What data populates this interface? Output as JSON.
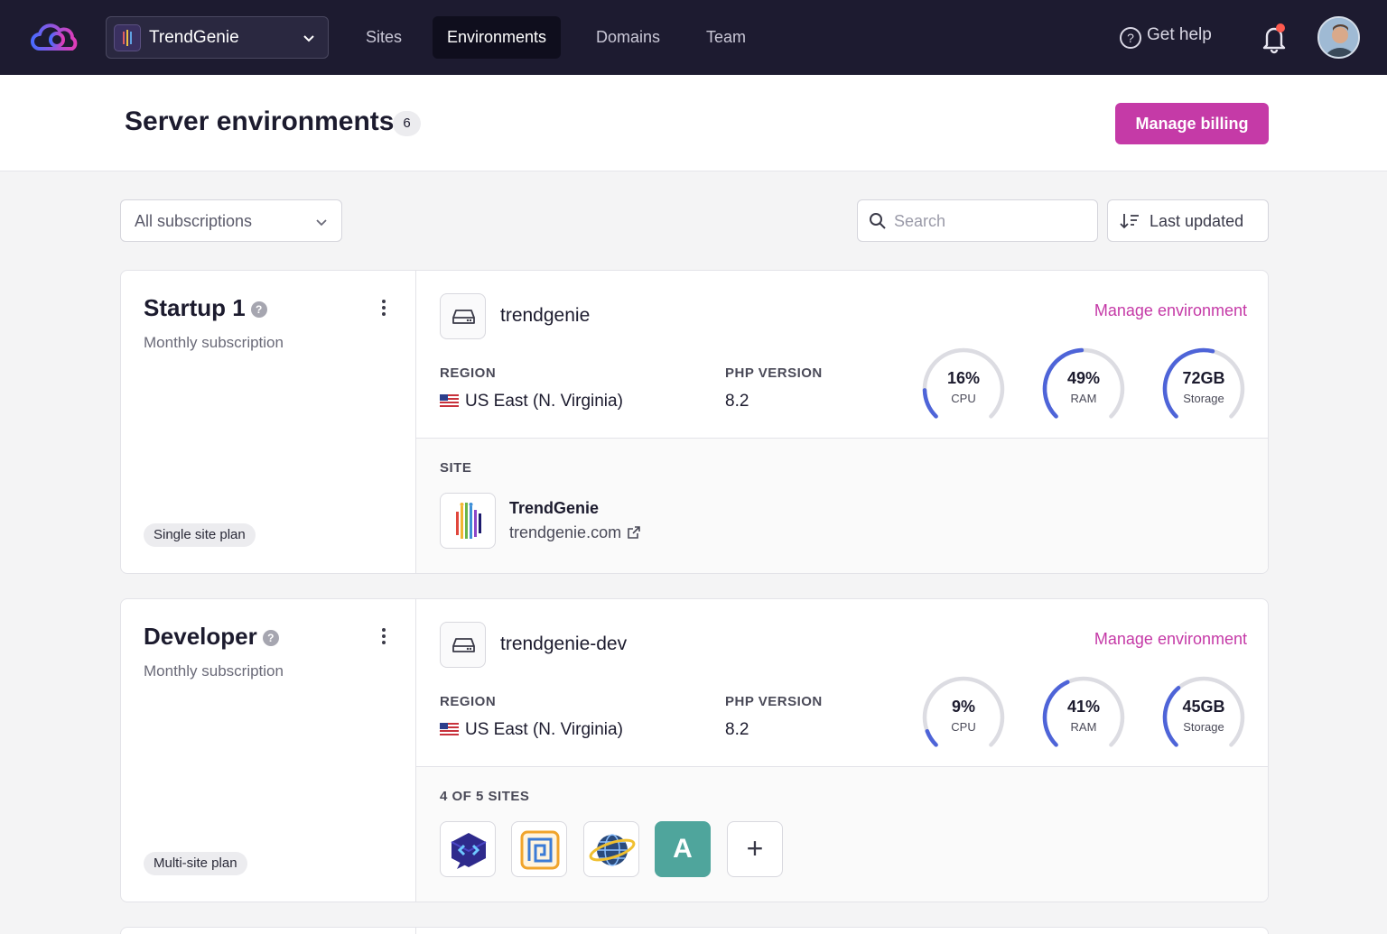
{
  "nav": {
    "workspace": "TrendGenie",
    "links": [
      "Sites",
      "Environments",
      "Domains",
      "Team"
    ],
    "active": "Environments",
    "help": "Get help"
  },
  "header": {
    "title": "Server environments",
    "count": "6",
    "billing_button": "Manage billing"
  },
  "filters": {
    "subscriptions": "All subscriptions",
    "search_placeholder": "Search",
    "sort": "Last updated"
  },
  "colors": {
    "accent": "#c53aa7",
    "gauge": "#4e64d8",
    "nav_bg": "#1d1b30"
  },
  "environments": [
    {
      "plan": "Startup 1",
      "billing": "Monthly subscription",
      "plan_type": "Single site plan",
      "name": "trendgenie",
      "manage": "Manage environment",
      "region_label": "REGION",
      "region": "US East (N. Virginia)",
      "php_label": "PHP VERSION",
      "php": "8.2",
      "gauges": [
        {
          "value": "16%",
          "label": "CPU",
          "fraction": 0.16
        },
        {
          "value": "49%",
          "label": "RAM",
          "fraction": 0.49
        },
        {
          "value": "72GB",
          "label": "Storage",
          "fraction": 0.55
        }
      ],
      "sites_label": "SITE",
      "site": {
        "title": "TrendGenie",
        "url": "trendgenie.com"
      }
    },
    {
      "plan": "Developer",
      "billing": "Monthly subscription",
      "plan_type": "Multi-site plan",
      "name": "trendgenie-dev",
      "manage": "Manage environment",
      "region_label": "REGION",
      "region": "US East (N. Virginia)",
      "php_label": "PHP VERSION",
      "php": "8.2",
      "gauges": [
        {
          "value": "9%",
          "label": "CPU",
          "fraction": 0.09
        },
        {
          "value": "41%",
          "label": "RAM",
          "fraction": 0.41
        },
        {
          "value": "45GB",
          "label": "Storage",
          "fraction": 0.35
        }
      ],
      "sites_label": "4 OF 5 SITES",
      "site_letter": "A",
      "add_symbol": "+"
    }
  ]
}
